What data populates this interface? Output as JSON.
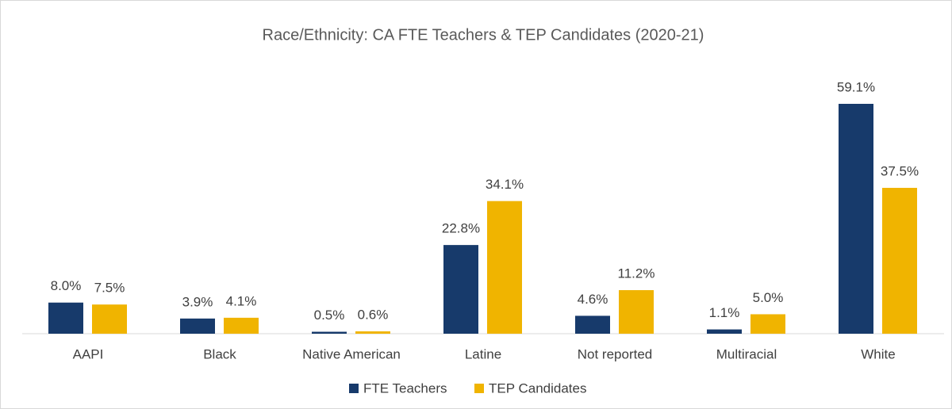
{
  "chart_data": {
    "type": "bar",
    "title": "Race/Ethnicity: CA FTE Teachers & TEP Candidates (2020-21)",
    "categories": [
      "AAPI",
      "Black",
      "Native American",
      "Latine",
      "Not reported",
      "Multiracial",
      "White"
    ],
    "series": [
      {
        "name": "FTE Teachers",
        "color": "#173a6b",
        "values": [
          8.0,
          3.9,
          0.5,
          22.8,
          4.6,
          1.1,
          59.1
        ],
        "value_labels": [
          "8.0%",
          "3.9%",
          "0.5%",
          "22.8%",
          "4.6%",
          "1.1%",
          "59.1%"
        ]
      },
      {
        "name": "TEP Candidates",
        "color": "#f0b400",
        "values": [
          7.5,
          4.1,
          0.6,
          34.1,
          11.2,
          5.0,
          37.5
        ],
        "value_labels": [
          "7.5%",
          "4.1%",
          "0.6%",
          "34.1%",
          "11.2%",
          "5.0%",
          "37.5%"
        ]
      }
    ],
    "legend": "bottom"
  }
}
